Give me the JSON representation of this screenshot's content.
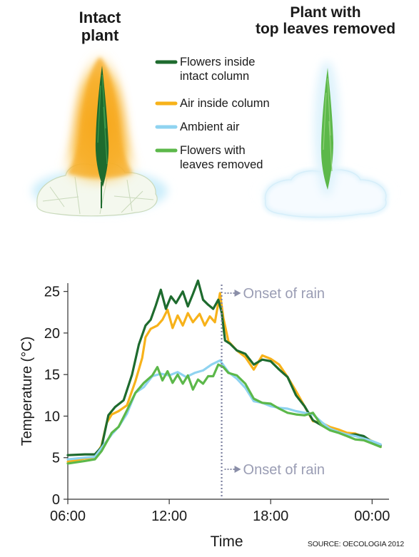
{
  "panels": {
    "intact_title_line1": "Intact",
    "intact_title_line2": "plant",
    "removed_title_line1": "Plant with",
    "removed_title_line2": "top leaves removed"
  },
  "legend": {
    "items": [
      {
        "line1": "Flowers inside",
        "line2": "intact column",
        "color": "#1e6b2e"
      },
      {
        "line1": "Air inside column",
        "line2": "",
        "color": "#f7b21a"
      },
      {
        "line1": "Ambient air",
        "line2": "",
        "color": "#8fd3f0"
      },
      {
        "line1": "Flowers with",
        "line2": "leaves removed",
        "color": "#5cb84a"
      }
    ]
  },
  "annotations": {
    "rain_top": "Onset of rain",
    "rain_bottom": "Onset of rain"
  },
  "source": "SOURCE: OECOLOGIA 2012",
  "chart_data": {
    "type": "line",
    "xlabel": "Time",
    "ylabel": "Temperature (°C)",
    "xlim": [
      6,
      25
    ],
    "ylim": [
      0,
      26
    ],
    "x_ticks": [
      6,
      12,
      18,
      24
    ],
    "x_tick_labels": [
      "06:00",
      "12:00",
      "18:00",
      "00:00"
    ],
    "y_ticks": [
      0,
      5,
      10,
      15,
      20,
      25
    ],
    "y_tick_labels": [
      "0",
      "5",
      "10",
      "15",
      "20",
      "25"
    ],
    "rain_onset_x": 15.1,
    "series": [
      {
        "name": "Air inside column",
        "color": "#f7b21a",
        "points": [
          [
            6.0,
            4.5
          ],
          [
            7.0,
            4.9
          ],
          [
            7.6,
            5.0
          ],
          [
            8.0,
            6.5
          ],
          [
            8.3,
            9.2
          ],
          [
            8.6,
            10.2
          ],
          [
            9.0,
            10.6
          ],
          [
            9.5,
            11.3
          ],
          [
            10.0,
            14.2
          ],
          [
            10.4,
            17.0
          ],
          [
            10.6,
            19.5
          ],
          [
            10.9,
            20.5
          ],
          [
            11.3,
            20.9
          ],
          [
            11.6,
            21.6
          ],
          [
            11.9,
            22.8
          ],
          [
            12.2,
            20.6
          ],
          [
            12.5,
            22.1
          ],
          [
            12.8,
            20.9
          ],
          [
            13.1,
            22.4
          ],
          [
            13.4,
            21.3
          ],
          [
            13.8,
            22.3
          ],
          [
            14.1,
            20.9
          ],
          [
            14.4,
            22.0
          ],
          [
            14.7,
            21.3
          ],
          [
            15.0,
            24.8
          ],
          [
            15.2,
            21.8
          ],
          [
            15.5,
            19.0
          ],
          [
            16.0,
            17.9
          ],
          [
            16.5,
            17.1
          ],
          [
            17.0,
            15.6
          ],
          [
            17.5,
            17.3
          ],
          [
            18.0,
            16.9
          ],
          [
            18.5,
            16.2
          ],
          [
            19.0,
            14.7
          ],
          [
            19.5,
            13.0
          ],
          [
            20.0,
            11.2
          ],
          [
            20.5,
            9.4
          ],
          [
            21.0,
            9.2
          ],
          [
            21.5,
            8.7
          ],
          [
            22.0,
            8.4
          ],
          [
            22.5,
            8.0
          ],
          [
            23.0,
            7.9
          ],
          [
            23.5,
            7.5
          ],
          [
            24.0,
            7.0
          ],
          [
            24.5,
            6.3
          ]
        ]
      },
      {
        "name": "Flowers inside intact column",
        "color": "#1e6b2e",
        "points": [
          [
            6.0,
            5.3
          ],
          [
            7.0,
            5.4
          ],
          [
            7.6,
            5.4
          ],
          [
            8.0,
            6.3
          ],
          [
            8.4,
            10.1
          ],
          [
            8.8,
            11.1
          ],
          [
            9.3,
            11.9
          ],
          [
            9.8,
            15.0
          ],
          [
            10.2,
            18.6
          ],
          [
            10.6,
            20.9
          ],
          [
            10.9,
            21.6
          ],
          [
            11.2,
            23.3
          ],
          [
            11.5,
            25.2
          ],
          [
            11.8,
            22.9
          ],
          [
            12.1,
            24.4
          ],
          [
            12.4,
            23.6
          ],
          [
            12.8,
            25.0
          ],
          [
            13.1,
            23.2
          ],
          [
            13.4,
            24.7
          ],
          [
            13.7,
            26.3
          ],
          [
            14.0,
            24.0
          ],
          [
            14.3,
            23.4
          ],
          [
            14.6,
            22.9
          ],
          [
            14.9,
            24.0
          ],
          [
            15.1,
            22.5
          ],
          [
            15.3,
            19.1
          ],
          [
            15.6,
            18.7
          ],
          [
            16.0,
            17.9
          ],
          [
            16.5,
            17.5
          ],
          [
            17.0,
            16.2
          ],
          [
            17.5,
            16.8
          ],
          [
            18.0,
            16.6
          ],
          [
            18.5,
            15.6
          ],
          [
            19.0,
            14.7
          ],
          [
            19.5,
            12.5
          ],
          [
            20.0,
            11.2
          ],
          [
            20.5,
            9.5
          ],
          [
            21.0,
            8.9
          ],
          [
            21.5,
            8.4
          ],
          [
            22.0,
            8.1
          ],
          [
            22.5,
            7.7
          ],
          [
            23.0,
            7.8
          ],
          [
            23.5,
            7.6
          ],
          [
            24.0,
            6.9
          ],
          [
            24.5,
            6.5
          ]
        ]
      },
      {
        "name": "Ambient air",
        "color": "#8fd3f0",
        "points": [
          [
            6.0,
            4.8
          ],
          [
            7.0,
            5.0
          ],
          [
            7.6,
            5.1
          ],
          [
            8.0,
            6.2
          ],
          [
            8.6,
            7.8
          ],
          [
            9.0,
            8.7
          ],
          [
            9.5,
            10.3
          ],
          [
            10.0,
            12.8
          ],
          [
            10.5,
            13.5
          ],
          [
            11.0,
            14.8
          ],
          [
            11.5,
            15.1
          ],
          [
            12.0,
            14.9
          ],
          [
            12.5,
            15.3
          ],
          [
            13.0,
            14.7
          ],
          [
            13.5,
            15.2
          ],
          [
            14.0,
            15.5
          ],
          [
            14.5,
            16.2
          ],
          [
            15.0,
            16.7
          ],
          [
            15.5,
            15.3
          ],
          [
            16.0,
            14.5
          ],
          [
            16.5,
            13.4
          ],
          [
            17.0,
            11.8
          ],
          [
            17.5,
            11.6
          ],
          [
            18.0,
            11.2
          ],
          [
            18.5,
            11.0
          ],
          [
            19.0,
            10.9
          ],
          [
            19.5,
            10.6
          ],
          [
            20.0,
            10.4
          ],
          [
            20.5,
            10.2
          ],
          [
            21.0,
            9.3
          ],
          [
            21.5,
            8.5
          ],
          [
            22.0,
            8.1
          ],
          [
            22.5,
            7.8
          ],
          [
            23.0,
            7.6
          ],
          [
            23.5,
            7.3
          ],
          [
            24.0,
            7.0
          ],
          [
            24.5,
            6.6
          ]
        ]
      },
      {
        "name": "Flowers with leaves removed",
        "color": "#5cb84a",
        "points": [
          [
            6.0,
            4.3
          ],
          [
            7.0,
            4.6
          ],
          [
            7.6,
            4.8
          ],
          [
            8.0,
            5.8
          ],
          [
            8.6,
            8.0
          ],
          [
            9.0,
            8.7
          ],
          [
            9.5,
            10.7
          ],
          [
            10.0,
            12.8
          ],
          [
            10.5,
            14.0
          ],
          [
            11.0,
            14.9
          ],
          [
            11.3,
            15.9
          ],
          [
            11.6,
            14.3
          ],
          [
            11.9,
            15.4
          ],
          [
            12.2,
            14.0
          ],
          [
            12.5,
            15.0
          ],
          [
            12.8,
            13.9
          ],
          [
            13.1,
            14.9
          ],
          [
            13.4,
            13.2
          ],
          [
            13.7,
            14.4
          ],
          [
            14.0,
            13.9
          ],
          [
            14.3,
            14.8
          ],
          [
            14.6,
            14.8
          ],
          [
            14.9,
            16.2
          ],
          [
            15.2,
            15.9
          ],
          [
            15.5,
            15.2
          ],
          [
            16.0,
            14.9
          ],
          [
            16.5,
            13.9
          ],
          [
            17.0,
            12.1
          ],
          [
            17.5,
            11.6
          ],
          [
            18.0,
            11.5
          ],
          [
            18.5,
            10.9
          ],
          [
            19.0,
            10.4
          ],
          [
            19.5,
            10.2
          ],
          [
            20.0,
            10.1
          ],
          [
            20.5,
            10.4
          ],
          [
            21.0,
            8.9
          ],
          [
            21.5,
            8.3
          ],
          [
            22.0,
            8.0
          ],
          [
            22.5,
            7.6
          ],
          [
            23.0,
            7.2
          ],
          [
            23.5,
            7.1
          ],
          [
            24.0,
            6.7
          ],
          [
            24.5,
            6.3
          ]
        ]
      }
    ]
  }
}
